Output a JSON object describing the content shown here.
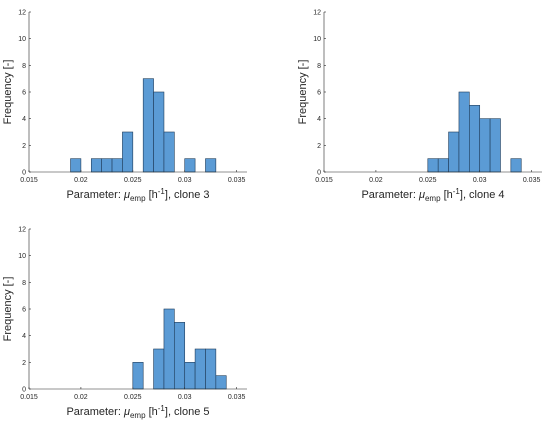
{
  "chart_data": [
    {
      "type": "bar",
      "xlabel_prefix": "Parameter:  ",
      "xlabel_symbol": "μ",
      "xlabel_sub": "emp",
      "xlabel_unit_open": " [h",
      "xlabel_unit_sup": "-1",
      "xlabel_unit_close": "], clone 3",
      "ylabel": "Frequency [-]",
      "xlim": [
        0.015,
        0.036
      ],
      "ylim": [
        0,
        12
      ],
      "xticks": [
        "0.015",
        "0.02",
        "0.025",
        "0.03",
        "0.035"
      ],
      "yticks": [
        "0",
        "2",
        "4",
        "6",
        "8",
        "10",
        "12"
      ],
      "bin_width": 0.001,
      "bins": [
        {
          "start": 0.019,
          "value": 1
        },
        {
          "start": 0.021,
          "value": 1
        },
        {
          "start": 0.022,
          "value": 1
        },
        {
          "start": 0.023,
          "value": 1
        },
        {
          "start": 0.024,
          "value": 3
        },
        {
          "start": 0.026,
          "value": 7
        },
        {
          "start": 0.027,
          "value": 6
        },
        {
          "start": 0.028,
          "value": 3
        },
        {
          "start": 0.03,
          "value": 1
        },
        {
          "start": 0.032,
          "value": 1
        }
      ]
    },
    {
      "type": "bar",
      "xlabel_prefix": "Parameter:  ",
      "xlabel_symbol": "μ",
      "xlabel_sub": "emp",
      "xlabel_unit_open": " [h",
      "xlabel_unit_sup": "-1",
      "xlabel_unit_close": "], clone 4",
      "ylabel": "Frequency [-]",
      "xlim": [
        0.015,
        0.036
      ],
      "ylim": [
        0,
        12
      ],
      "xticks": [
        "0.015",
        "0.02",
        "0.025",
        "0.03",
        "0.035"
      ],
      "yticks": [
        "0",
        "2",
        "4",
        "6",
        "8",
        "10",
        "12"
      ],
      "bin_width": 0.001,
      "bins": [
        {
          "start": 0.025,
          "value": 1
        },
        {
          "start": 0.026,
          "value": 1
        },
        {
          "start": 0.027,
          "value": 3
        },
        {
          "start": 0.028,
          "value": 6
        },
        {
          "start": 0.029,
          "value": 5
        },
        {
          "start": 0.03,
          "value": 4
        },
        {
          "start": 0.031,
          "value": 4
        },
        {
          "start": 0.033,
          "value": 1
        }
      ]
    },
    {
      "type": "bar",
      "xlabel_prefix": "Parameter:  ",
      "xlabel_symbol": "μ",
      "xlabel_sub": "emp",
      "xlabel_unit_open": " [h",
      "xlabel_unit_sup": "-1",
      "xlabel_unit_close": "], clone 5",
      "ylabel": "Frequency [-]",
      "xlim": [
        0.015,
        0.036
      ],
      "ylim": [
        0,
        12
      ],
      "xticks": [
        "0.015",
        "0.02",
        "0.025",
        "0.03",
        "0.035"
      ],
      "yticks": [
        "0",
        "2",
        "4",
        "6",
        "8",
        "10",
        "12"
      ],
      "bin_width": 0.001,
      "bins": [
        {
          "start": 0.025,
          "value": 2
        },
        {
          "start": 0.027,
          "value": 3
        },
        {
          "start": 0.028,
          "value": 6
        },
        {
          "start": 0.029,
          "value": 5
        },
        {
          "start": 0.03,
          "value": 2
        },
        {
          "start": 0.031,
          "value": 3
        },
        {
          "start": 0.032,
          "value": 3
        },
        {
          "start": 0.033,
          "value": 1
        }
      ]
    }
  ]
}
